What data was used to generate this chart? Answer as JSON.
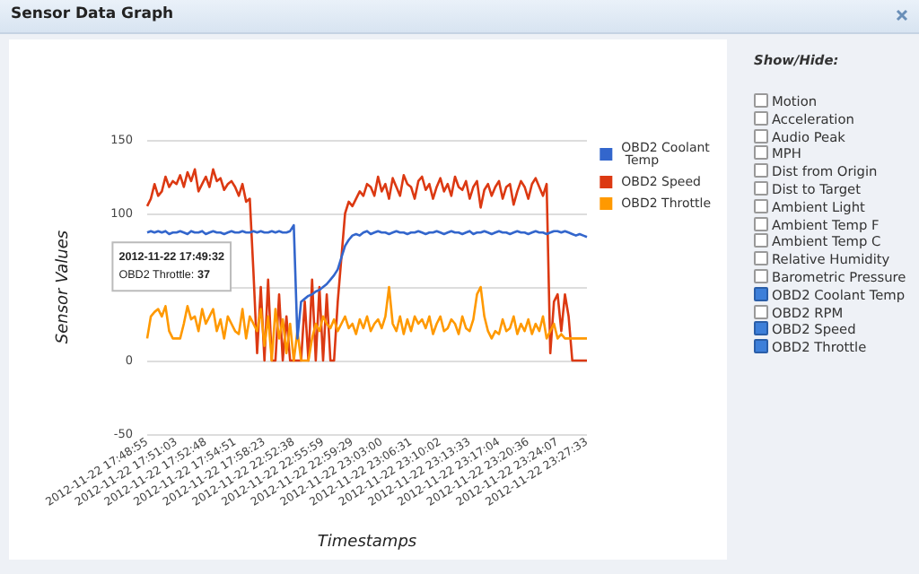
{
  "chart_data": [
    {
      "type": "line",
      "title": "Sensor Data Graph",
      "xlabel": "Timestamps",
      "ylabel": "Sensor Values",
      "categories": [
        "2012-11-22 17:48:55",
        null,
        null,
        null,
        null,
        null,
        null,
        null,
        "2012-11-22 17:51:03",
        null,
        null,
        null,
        null,
        null,
        null,
        null,
        "2012-11-22 17:52:48",
        null,
        null,
        null,
        null,
        null,
        null,
        null,
        "2012-11-22 17:54:51",
        null,
        null,
        null,
        null,
        null,
        null,
        null,
        "2012-11-22 17:58:23",
        null,
        null,
        null,
        null,
        null,
        null,
        null,
        "2012-11-22 22:52:38",
        null,
        null,
        null,
        null,
        null,
        null,
        null,
        "2012-11-22 22:55:59",
        null,
        null,
        null,
        null,
        null,
        null,
        null,
        "2012-11-22 22:59:29",
        null,
        null,
        null,
        null,
        null,
        null,
        null,
        "2012-11-22 23:03:00",
        null,
        null,
        null,
        null,
        null,
        null,
        null,
        "2012-11-22 23:06:31",
        null,
        null,
        null,
        null,
        null,
        null,
        null,
        "2012-11-22 23:10:02",
        null,
        null,
        null,
        null,
        null,
        null,
        null,
        "2012-11-22 23:13:33",
        null,
        null,
        null,
        null,
        null,
        null,
        null,
        "2012-11-22 23:17:04",
        null,
        null,
        null,
        null,
        null,
        null,
        null,
        "2012-11-22 23:20:36",
        null,
        null,
        null,
        null,
        null,
        null,
        null,
        "2012-11-22 23:24:07",
        null,
        null,
        null,
        null,
        null,
        null,
        null,
        "2012-11-22 23:27:33"
      ],
      "series": [
        {
          "name": "OBD2 Coolant Temp",
          "color": "#3366cc",
          "values": [
            87,
            88,
            87,
            88,
            87,
            88,
            86,
            87,
            87,
            88,
            87,
            86,
            88,
            87,
            87,
            88,
            86,
            87,
            88,
            87,
            87,
            86,
            87,
            88,
            87,
            87,
            88,
            87,
            87,
            88,
            87,
            88,
            87,
            87,
            88,
            87,
            88,
            87,
            87,
            88,
            92,
            15,
            40,
            42,
            44,
            45,
            47,
            48,
            50,
            52,
            55,
            58,
            62,
            70,
            78,
            82,
            85,
            86,
            85,
            87,
            88,
            86,
            87,
            88,
            87,
            87,
            86,
            87,
            88,
            87,
            87,
            86,
            87,
            87,
            88,
            87,
            86,
            87,
            87,
            88,
            87,
            86,
            87,
            88,
            87,
            87,
            86,
            87,
            88,
            86,
            87,
            87,
            88,
            87,
            86,
            87,
            88,
            87,
            87,
            86,
            87,
            88,
            87,
            87,
            86,
            87,
            88,
            87,
            87,
            86,
            87,
            88,
            88,
            87,
            88,
            87,
            86,
            85,
            86,
            85,
            84
          ]
        },
        {
          "name": "OBD2 Speed",
          "color": "#dc3912",
          "values": [
            105,
            110,
            120,
            112,
            115,
            125,
            118,
            122,
            120,
            126,
            118,
            128,
            122,
            130,
            115,
            120,
            125,
            118,
            130,
            122,
            124,
            116,
            120,
            122,
            118,
            112,
            120,
            108,
            110,
            60,
            5,
            50,
            0,
            55,
            0,
            0,
            45,
            0,
            30,
            0,
            0,
            0,
            0,
            40,
            0,
            55,
            0,
            50,
            0,
            45,
            0,
            0,
            40,
            70,
            100,
            108,
            105,
            110,
            115,
            112,
            120,
            118,
            112,
            125,
            115,
            120,
            110,
            124,
            118,
            112,
            126,
            120,
            118,
            110,
            122,
            125,
            116,
            120,
            110,
            118,
            124,
            115,
            120,
            112,
            125,
            118,
            116,
            122,
            110,
            118,
            122,
            104,
            116,
            120,
            112,
            118,
            122,
            110,
            118,
            120,
            106,
            115,
            122,
            118,
            110,
            120,
            124,
            118,
            112,
            120,
            5,
            40,
            45,
            20,
            45,
            30,
            0,
            0,
            0,
            0,
            0
          ]
        },
        {
          "name": "OBD2 Throttle",
          "color": "#ff9900",
          "values": [
            15,
            30,
            33,
            35,
            30,
            37,
            20,
            15,
            15,
            15,
            25,
            37,
            28,
            30,
            20,
            35,
            25,
            30,
            35,
            20,
            28,
            15,
            30,
            25,
            20,
            18,
            35,
            15,
            30,
            25,
            20,
            35,
            10,
            30,
            0,
            35,
            15,
            28,
            5,
            25,
            0,
            20,
            0,
            0,
            0,
            15,
            25,
            20,
            30,
            25,
            22,
            28,
            20,
            25,
            30,
            22,
            25,
            18,
            28,
            22,
            30,
            20,
            25,
            28,
            22,
            30,
            50,
            25,
            20,
            30,
            18,
            28,
            20,
            30,
            25,
            28,
            22,
            30,
            18,
            25,
            30,
            20,
            22,
            28,
            25,
            18,
            30,
            22,
            20,
            28,
            45,
            50,
            30,
            20,
            15,
            20,
            18,
            28,
            20,
            22,
            30,
            18,
            25,
            20,
            28,
            18,
            25,
            20,
            30,
            15,
            20,
            25,
            15,
            18,
            15,
            15,
            15,
            15,
            15,
            15,
            15
          ]
        }
      ],
      "ylim": [
        -50,
        150
      ],
      "yticks": [
        -50,
        0,
        {
          "value": 50,
          "label": null
        },
        100,
        150
      ],
      "grid": "y",
      "legend": "right",
      "marker": "none",
      "annotations": [
        {
          "text": "2012-11-22 17:49:32\nOBD2 Throttle: 37",
          "y": 37
        }
      ]
    },
    {
      "type": "other",
      "title": "Show/Hide:",
      "annotations": [
        "Motion",
        "Acceleration",
        "Audio Peak",
        "MPH",
        "Dist from Origin",
        "Dist to Target",
        "Ambient Light",
        "Ambient Temp F",
        "Ambient Temp C",
        "Relative Humidity",
        "Barometric Pressure",
        "OBD2 Coolant Temp",
        "OBD2 RPM",
        "OBD2 Speed",
        "OBD2 Throttle"
      ]
    }
  ]
}
